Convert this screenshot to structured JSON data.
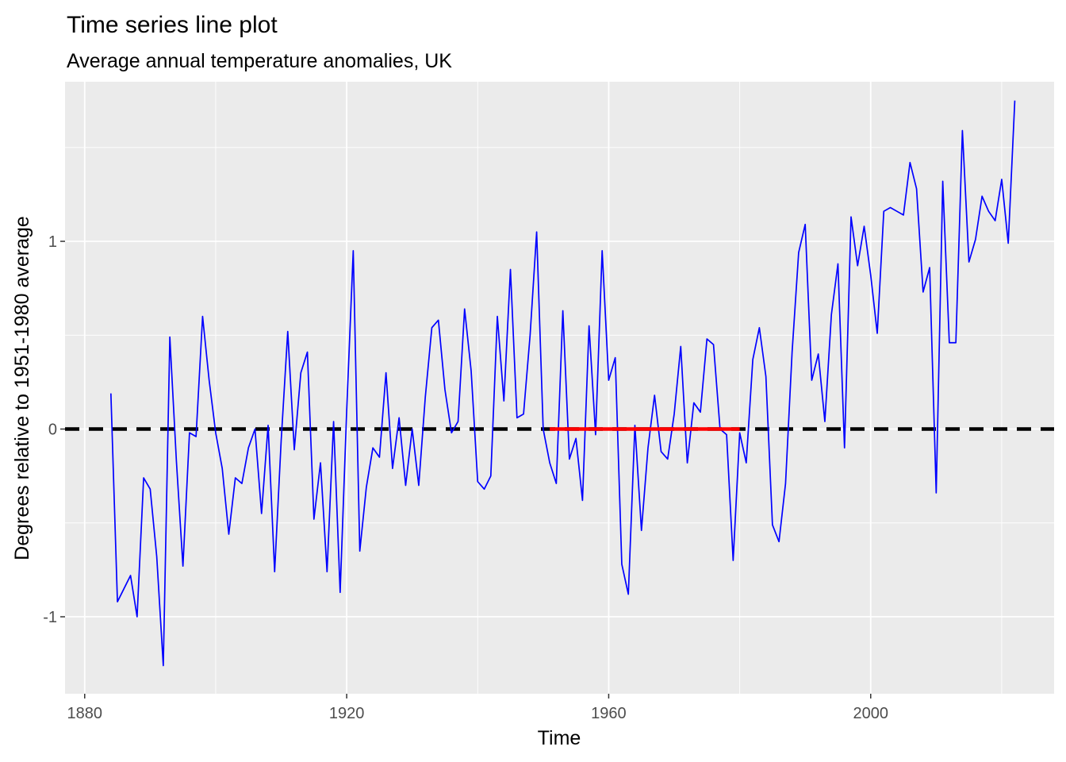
{
  "chart_data": {
    "type": "line",
    "title": "Time series line plot",
    "subtitle": "Average annual temperature anomalies, UK",
    "xlabel": "Time",
    "ylabel": "Degrees relative to 1951-1980 average",
    "xlim": [
      1877,
      2028
    ],
    "ylim": [
      -1.41,
      1.85
    ],
    "x_ticks": [
      1880,
      1920,
      1960,
      2000
    ],
    "x_tick_labels": [
      "1880",
      "1920",
      "1960",
      "2000"
    ],
    "y_ticks": [
      -1,
      0,
      1
    ],
    "y_tick_labels": [
      "-1",
      "0",
      "1"
    ],
    "grid": true,
    "legend": "none",
    "colors": {
      "panel_background": "#ebebeb",
      "grid": "#ffffff",
      "series": "#0000ff",
      "reference_line": "#000000",
      "baseline_period": "#ff0000"
    },
    "series": [
      {
        "x": [
          1884,
          1885,
          1886,
          1887,
          1888,
          1889,
          1890,
          1891,
          1892,
          1893,
          1894,
          1895,
          1896,
          1897,
          1898,
          1899,
          1900,
          1901,
          1902,
          1903,
          1904,
          1905,
          1906,
          1907,
          1908,
          1909,
          1910,
          1911,
          1912,
          1913,
          1914,
          1915,
          1916,
          1917,
          1918,
          1919,
          1920,
          1921,
          1922,
          1923,
          1924,
          1925,
          1926,
          1927,
          1928,
          1929,
          1930,
          1931,
          1932,
          1933,
          1934,
          1935,
          1936,
          1937,
          1938,
          1939,
          1940,
          1941,
          1942,
          1943,
          1944,
          1945,
          1946,
          1947,
          1948,
          1949,
          1950,
          1951,
          1952,
          1953,
          1954,
          1955,
          1956,
          1957,
          1958,
          1959,
          1960,
          1961,
          1962,
          1963,
          1964,
          1965,
          1966,
          1967,
          1968,
          1969,
          1970,
          1971,
          1972,
          1973,
          1974,
          1975,
          1976,
          1977,
          1978,
          1979,
          1980,
          1981,
          1982,
          1983,
          1984,
          1985,
          1986,
          1987,
          1988,
          1989,
          1990,
          1991,
          1992,
          1993,
          1994,
          1995,
          1996,
          1997,
          1998,
          1999,
          2000,
          2001,
          2002,
          2003,
          2004,
          2005,
          2006,
          2007,
          2008,
          2009,
          2010,
          2011,
          2012,
          2013,
          2014,
          2015,
          2016,
          2017,
          2018,
          2019,
          2020,
          2021,
          2022
        ],
        "y": [
          0.19,
          -0.92,
          -0.85,
          -0.78,
          -1.0,
          -0.26,
          -0.32,
          -0.68,
          -1.26,
          0.49,
          -0.17,
          -0.73,
          -0.02,
          -0.04,
          0.6,
          0.26,
          -0.02,
          -0.21,
          -0.56,
          -0.26,
          -0.29,
          -0.1,
          0.0,
          -0.45,
          0.02,
          -0.76,
          -0.06,
          0.52,
          -0.11,
          0.3,
          0.41,
          -0.48,
          -0.18,
          -0.76,
          0.04,
          -0.87,
          0.1,
          0.95,
          -0.65,
          -0.31,
          -0.1,
          -0.15,
          0.3,
          -0.21,
          0.06,
          -0.3,
          0.0,
          -0.3,
          0.17,
          0.54,
          0.58,
          0.21,
          -0.02,
          0.04,
          0.64,
          0.31,
          -0.28,
          -0.32,
          -0.25,
          0.6,
          0.15,
          0.85,
          0.06,
          0.08,
          0.5,
          1.05,
          0.0,
          -0.18,
          -0.29,
          0.63,
          -0.16,
          -0.05,
          -0.38,
          0.55,
          -0.03,
          0.95,
          0.26,
          0.38,
          -0.72,
          -0.88,
          0.02,
          -0.54,
          -0.1,
          0.18,
          -0.12,
          -0.16,
          0.08,
          0.44,
          -0.18,
          0.14,
          0.09,
          0.48,
          0.45,
          0.0,
          -0.03,
          -0.7,
          -0.02,
          -0.18,
          0.37,
          0.54,
          0.28,
          -0.51,
          -0.6,
          -0.29,
          0.41,
          0.94,
          1.09,
          0.26,
          0.4,
          0.04,
          0.61,
          0.88,
          -0.1,
          1.13,
          0.87,
          1.08,
          0.82,
          0.51,
          1.16,
          1.18,
          1.16,
          1.14,
          1.42,
          1.28,
          0.73,
          0.86,
          -0.34,
          1.32,
          0.46,
          0.46,
          1.59,
          0.89,
          1.01,
          1.24,
          1.16,
          1.11,
          1.33,
          0.99,
          1.75
        ]
      }
    ],
    "reference_lines": [
      {
        "y": 0,
        "x_start": 1877,
        "x_end": 2028,
        "style": "dashed"
      }
    ],
    "baseline_segment": {
      "y": 0,
      "x_start": 1951,
      "x_end": 1980
    }
  }
}
